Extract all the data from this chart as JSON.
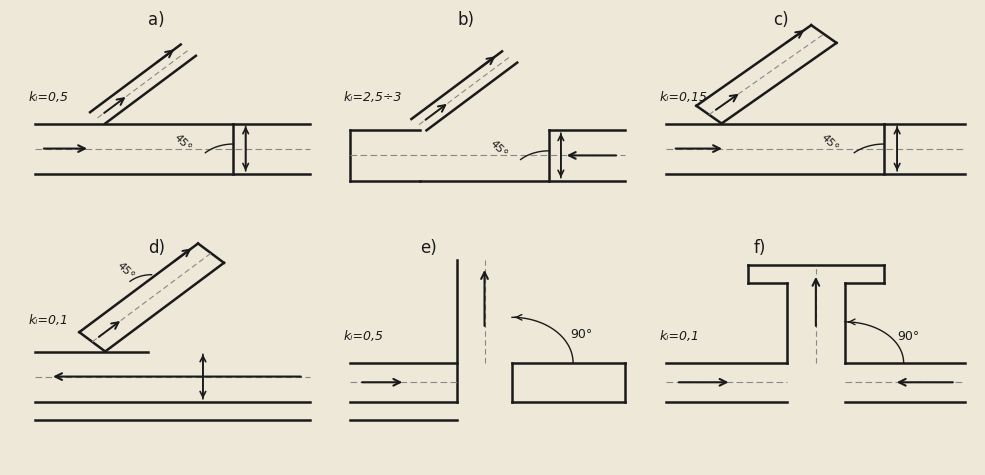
{
  "bg_color": "#ede8d8",
  "line_color": "#1a1a1a",
  "dash_color": "#888888",
  "panels": {
    "a": {
      "label": "a)",
      "ki": "kᵢ=0,5",
      "flow_dir": "right",
      "angle_label": "45°"
    },
    "b": {
      "label": "b)",
      "ki": "kᵢ=2,5÷3",
      "flow_dir": "left",
      "angle_label": "45°"
    },
    "c": {
      "label": "c)",
      "ki": "kᵢ=0,15",
      "flow_dir": "right",
      "angle_label": "45°"
    },
    "d": {
      "label": "d)",
      "ki": "kᵢ=0,1",
      "flow_dir": "left",
      "angle_label": "45°"
    },
    "e": {
      "label": "e)",
      "ki": "kᵢ=0,5",
      "flow_dir": "right",
      "angle_label": "90°"
    },
    "f": {
      "label": "f)",
      "ki": "kᵢ=0,1",
      "flow_dir": "right",
      "angle_label": "90°"
    }
  }
}
